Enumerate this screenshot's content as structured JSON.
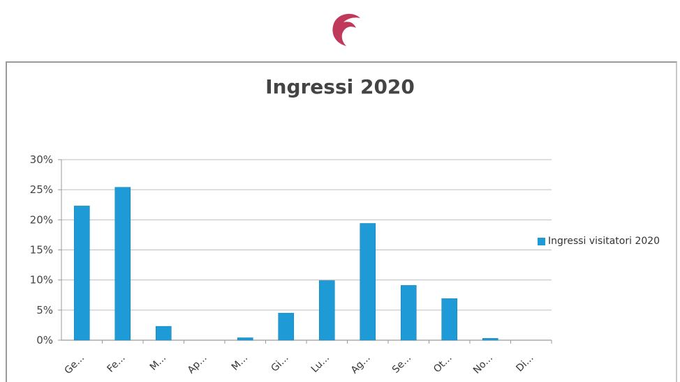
{
  "logo": {
    "color": "#c0395a",
    "icon": "crescent-bird-logo"
  },
  "chart_data": {
    "type": "bar",
    "title": "Ingressi 2020",
    "categories": [
      "Ge...",
      "Fe...",
      "M...",
      "Ap...",
      "M...",
      "Gi...",
      "Lu...",
      "Ag...",
      "Se...",
      "Ot...",
      "No...",
      "Di..."
    ],
    "series": [
      {
        "name": "Ingressi visitatori 2020",
        "color": "#1e9bd7",
        "values": [
          22.3,
          25.4,
          2.3,
          0,
          0.4,
          4.5,
          9.9,
          19.4,
          9.1,
          6.9,
          0.3,
          0
        ]
      }
    ],
    "yticks": [
      "0%",
      "5%",
      "10%",
      "15%",
      "20%",
      "25%",
      "30%"
    ],
    "ylim": [
      0,
      30
    ],
    "grid": true,
    "legend_position": "right"
  }
}
